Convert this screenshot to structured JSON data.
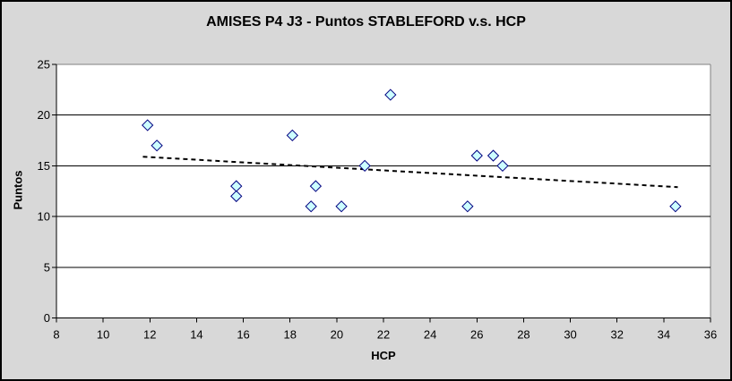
{
  "chart_data": {
    "type": "scatter",
    "title": "AMISES P4 J3 - Puntos STABLEFORD v.s. HCP",
    "xlabel": "HCP",
    "ylabel": "Puntos",
    "xlim": [
      8,
      36
    ],
    "ylim": [
      0,
      25
    ],
    "x_ticks": [
      8,
      10,
      12,
      14,
      16,
      18,
      20,
      22,
      24,
      26,
      28,
      30,
      32,
      34,
      36
    ],
    "y_ticks": [
      0,
      5,
      10,
      15,
      20,
      25
    ],
    "grid": "horizontal",
    "legend": "none",
    "series": [
      {
        "name": "Puntos STABLEFORD vs HCP",
        "marker": "diamond",
        "marker_fill": "#ccffff",
        "marker_stroke": "#000080",
        "points": [
          [
            11.9,
            19
          ],
          [
            12.3,
            17
          ],
          [
            15.7,
            13
          ],
          [
            15.7,
            12
          ],
          [
            18.1,
            18
          ],
          [
            18.9,
            11
          ],
          [
            19.1,
            13
          ],
          [
            20.2,
            11
          ],
          [
            21.2,
            15
          ],
          [
            22.3,
            22
          ],
          [
            25.6,
            11
          ],
          [
            26.0,
            16
          ],
          [
            26.7,
            16
          ],
          [
            27.1,
            15
          ],
          [
            34.5,
            11
          ]
        ]
      }
    ],
    "trendline": {
      "style": "dashed",
      "color": "#000000",
      "start": {
        "hcp": 11.7,
        "puntos": 15.9
      },
      "end": {
        "hcp": 34.6,
        "puntos": 12.9
      }
    },
    "colors": {
      "chart_background": "#d8d8d8",
      "plot_background": "#ffffff",
      "gridline": "#000000",
      "axis": "#000000",
      "plot_border": "#808080",
      "outer_border": "#000000"
    }
  }
}
